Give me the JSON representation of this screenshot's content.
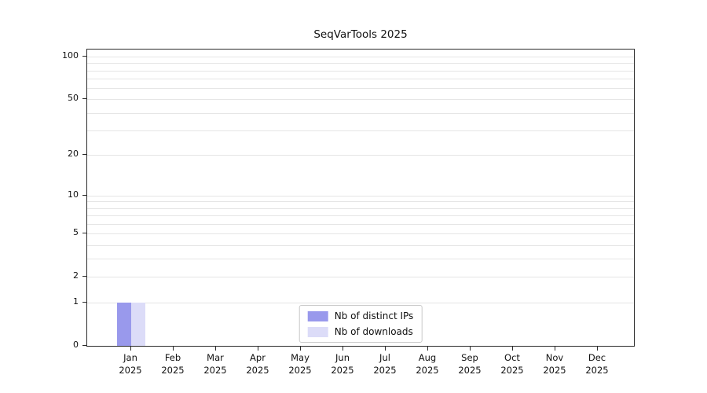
{
  "title": "SeqVarTools 2025",
  "chart_data": {
    "type": "bar",
    "title": "SeqVarTools 2025",
    "categories": [
      "Jan 2025",
      "Feb 2025",
      "Mar 2025",
      "Apr 2025",
      "May 2025",
      "Jun 2025",
      "Jul 2025",
      "Aug 2025",
      "Sep 2025",
      "Oct 2025",
      "Nov 2025",
      "Dec 2025"
    ],
    "series": [
      {
        "name": "Nb of distinct IPs",
        "color": "#9999ec",
        "values": [
          1,
          0,
          0,
          0,
          0,
          0,
          0,
          0,
          0,
          0,
          0,
          0
        ]
      },
      {
        "name": "Nb of downloads",
        "color": "#dcdcf8",
        "values": [
          1,
          0,
          0,
          0,
          0,
          0,
          0,
          0,
          0,
          0,
          0,
          0
        ]
      }
    ],
    "xlabel": "",
    "ylabel": "",
    "y_ticks": [
      0,
      1,
      2,
      5,
      10,
      20,
      50,
      100
    ],
    "grid_values": [
      1,
      2,
      3,
      4,
      5,
      6,
      7,
      8,
      9,
      10,
      20,
      30,
      40,
      50,
      60,
      70,
      80,
      90,
      100
    ],
    "y_scale": "log1p",
    "ylim": [
      0,
      112
    ],
    "grid": true,
    "legend_position": "bottom-center-inside"
  }
}
